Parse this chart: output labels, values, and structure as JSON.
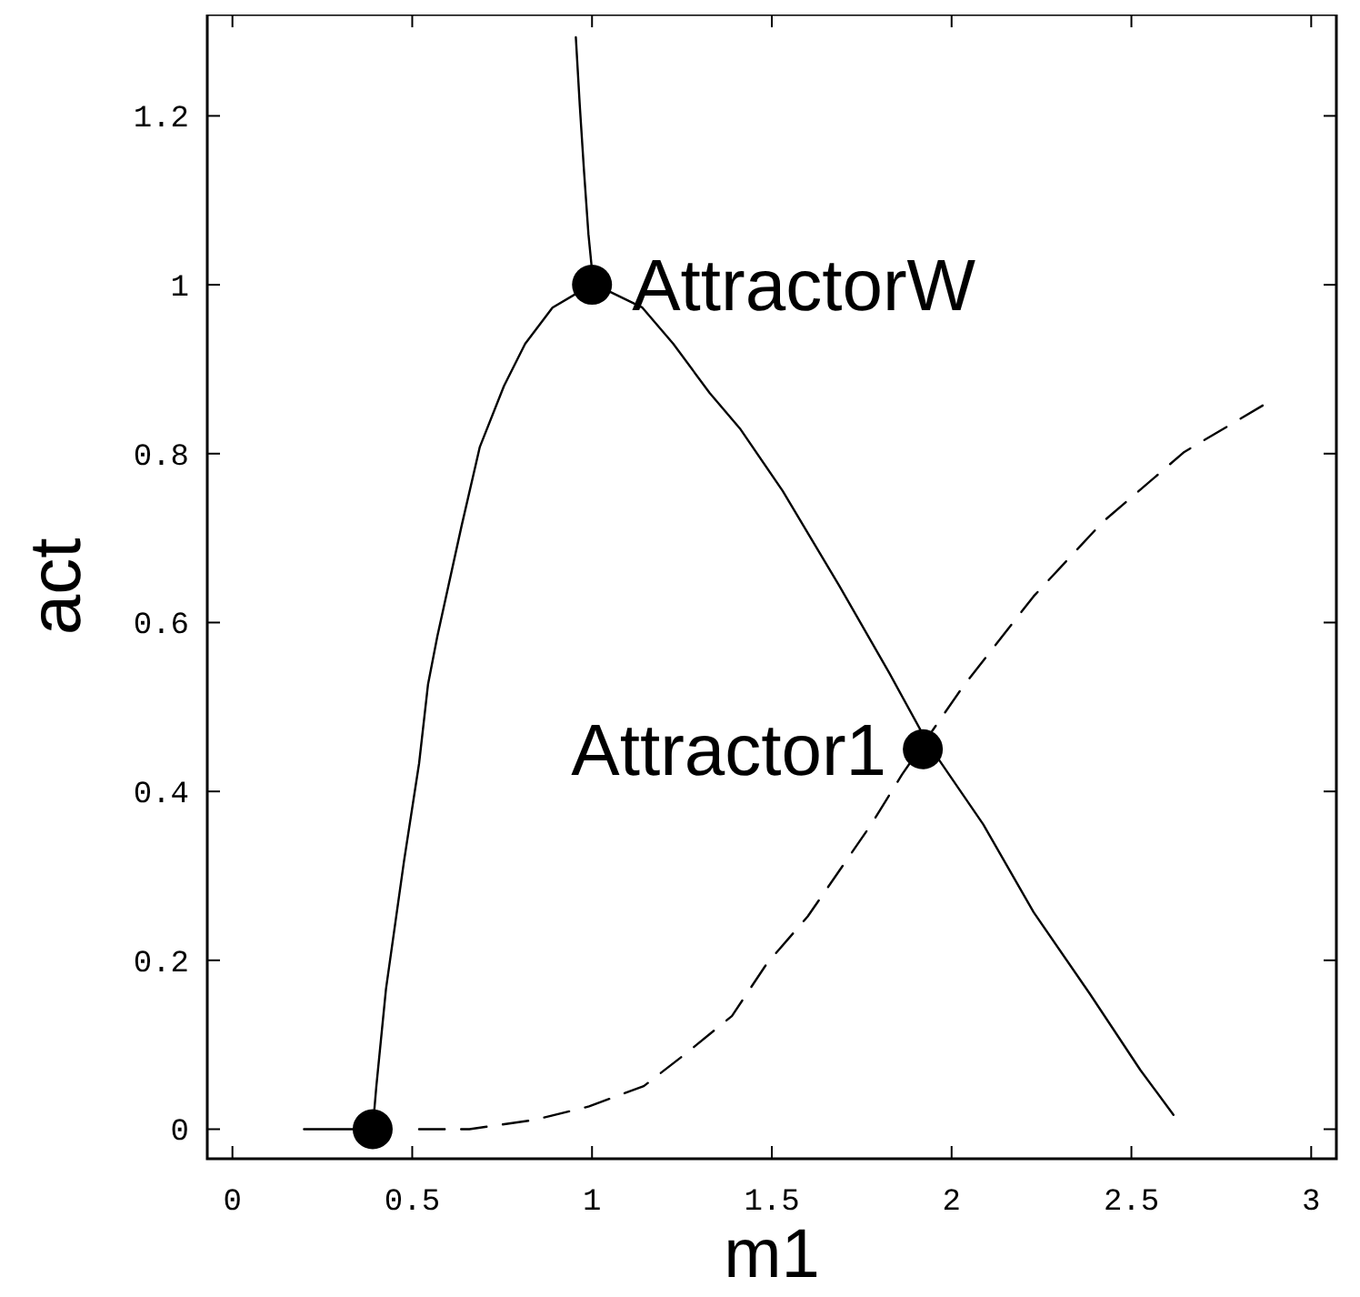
{
  "chart_data": {
    "type": "line",
    "xlabel": "m1",
    "ylabel": "act",
    "xlim": [
      -0.07,
      3.07
    ],
    "ylim": [
      -0.035,
      1.32
    ],
    "xticks": [
      0,
      0.5,
      1,
      1.5,
      2,
      2.5,
      3
    ],
    "yticks": [
      0,
      0.2,
      0.4,
      0.6,
      0.8,
      1,
      1.2
    ],
    "grid": false,
    "series": [
      {
        "color": "#000000",
        "line_style": "solid",
        "x": [
          0.199,
          0.39,
          0.4,
          0.427,
          0.477,
          0.519,
          0.544,
          0.57,
          0.637,
          0.688,
          0.755,
          0.814,
          0.89,
          0.958,
          1.01,
          1.14,
          1.226,
          1.327,
          1.411,
          1.53,
          1.687,
          1.827,
          1.935,
          2.088,
          2.228,
          2.385,
          2.525,
          2.617
        ],
        "values": [
          0,
          0,
          0.05,
          0.166,
          0.317,
          0.433,
          0.527,
          0.584,
          0.714,
          0.808,
          0.88,
          0.93,
          0.973,
          0.99,
          1,
          0.973,
          0.93,
          0.872,
          0.83,
          0.756,
          0.644,
          0.54,
          0.456,
          0.361,
          0.257,
          0.16,
          0.07,
          0.017
        ]
      },
      {
        "color": "#000000",
        "line_style": "solid",
        "x": [
          0.955,
          0.966,
          0.978,
          0.99,
          1.0
        ],
        "values": [
          1.293,
          1.212,
          1.133,
          1.06,
          1.017
        ]
      },
      {
        "color": "#000000",
        "line_style": "dashed",
        "x": [
          0.519,
          0.659,
          0.84,
          0.992,
          1.144,
          1.262,
          1.389,
          1.486,
          1.6,
          1.775,
          1.862,
          2.033,
          2.228,
          2.42,
          2.647,
          2.865
        ],
        "values": [
          0,
          0,
          0.011,
          0.027,
          0.051,
          0.09,
          0.134,
          0.196,
          0.252,
          0.36,
          0.42,
          0.525,
          0.631,
          0.719,
          0.802,
          0.857
        ]
      },
      {
        "type": "scatter",
        "color": "#000000",
        "marker": "circle",
        "x": [
          0.39,
          1.0,
          1.92
        ],
        "values": [
          0,
          1,
          0.45
        ]
      }
    ],
    "annotations": [
      {
        "text": "AttractorW",
        "x": 1.0,
        "y": 1
      },
      {
        "text": "Attractor1",
        "x": 1.92,
        "y": 0.45
      }
    ]
  }
}
